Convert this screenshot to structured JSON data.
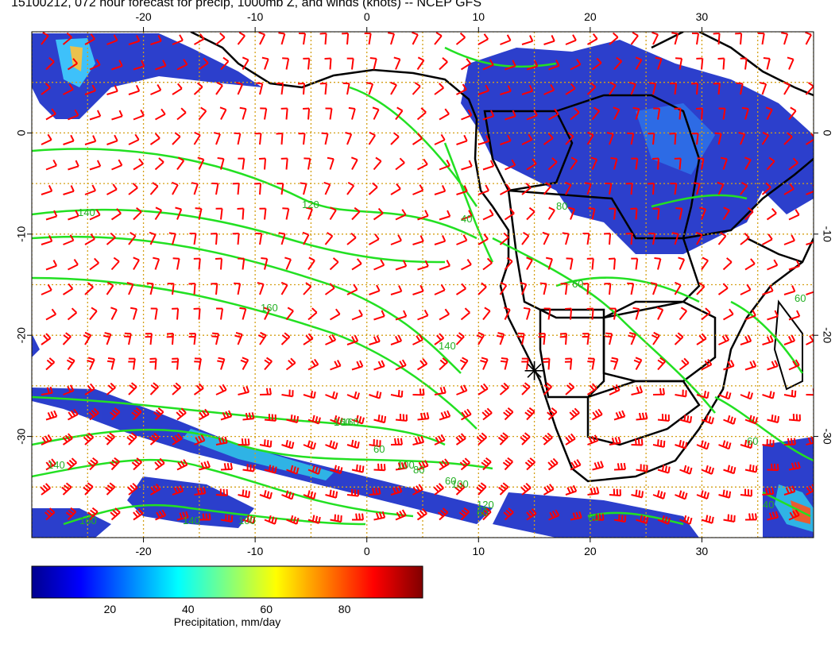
{
  "title": "15100212, 072 hour forecast for precip, 1000mb Z, and winds (knots) -- NCEP GFS",
  "map": {
    "lon_range": [
      -30,
      40
    ],
    "lat_range": [
      -40,
      10
    ],
    "lon_tick_labels": [
      "-20",
      "-10",
      "0",
      "10",
      "20",
      "30"
    ],
    "lon_tick_values": [
      -20,
      -10,
      0,
      10,
      20,
      30
    ],
    "lat_tick_labels": [
      "0",
      "-10",
      "-20",
      "-30"
    ],
    "lat_tick_values": [
      0,
      -10,
      -20,
      -30
    ],
    "grid": "dotted",
    "colors": {
      "wind_barbs": "#ff0000",
      "height_contours": "#00ee00",
      "coastline": "#000000",
      "grid": "#d4a017"
    },
    "contour_labels": [
      "140",
      "120",
      "160",
      "140",
      "160",
      "140",
      "160",
      "100",
      "140",
      "100",
      "60",
      "60",
      "80",
      "60",
      "40",
      "60",
      "80",
      "100",
      "120",
      "160",
      "60",
      "40",
      "60",
      "60"
    ],
    "marker": {
      "lon": 15,
      "lat": -23.5,
      "icon": "asterisk-icon"
    }
  },
  "colorbar": {
    "label": "Precipitation, mm/day",
    "tick_labels": [
      "20",
      "40",
      "60",
      "80"
    ],
    "tick_values": [
      20,
      40,
      60,
      80
    ],
    "range": [
      0,
      100
    ],
    "colormap": [
      "#00008f",
      "#0000ff",
      "#0080ff",
      "#00ffff",
      "#80ff80",
      "#ffff00",
      "#ff8000",
      "#ff0000",
      "#800000"
    ]
  }
}
